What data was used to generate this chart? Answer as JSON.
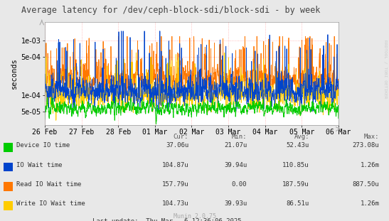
{
  "title": "Average latency for /dev/ceph-block-sdi/block-sdi - by week",
  "ylabel": "seconds",
  "watermark": "RRDTOOL / TOBI OETIKER",
  "munin_version": "Munin 2.0.75",
  "bg_color": "#e8e8e8",
  "plot_bg_color": "#ffffff",
  "grid_color": "#ffaaaa",
  "ylim_log_min": 2.8e-05,
  "ylim_log_max": 0.0022,
  "yticks": [
    5e-05,
    0.0001,
    0.0005,
    0.001
  ],
  "x_labels": [
    "26 Feb",
    "27 Feb",
    "28 Feb",
    "01 Mar",
    "02 Mar",
    "03 Mar",
    "04 Mar",
    "05 Mar",
    "06 Mar"
  ],
  "legend_entries": [
    {
      "label": "Device IO time",
      "color": "#00cc00"
    },
    {
      "label": "IO Wait time",
      "color": "#0044cc"
    },
    {
      "label": "Read IO Wait time",
      "color": "#ff7700"
    },
    {
      "label": "Write IO Wait time",
      "color": "#ffcc00"
    }
  ],
  "legend_table": {
    "headers": [
      "Cur:",
      "Min:",
      "Avg:",
      "Max:"
    ],
    "rows": [
      [
        "37.06u",
        "21.07u",
        "52.43u",
        "273.08u"
      ],
      [
        "104.87u",
        "39.94u",
        "110.85u",
        "1.26m"
      ],
      [
        "157.79u",
        "0.00",
        "187.59u",
        "887.50u"
      ],
      [
        "104.73u",
        "39.93u",
        "86.51u",
        "1.26m"
      ]
    ]
  },
  "last_update": "Last update:  Thu Mar   6 12:36:06 2025"
}
